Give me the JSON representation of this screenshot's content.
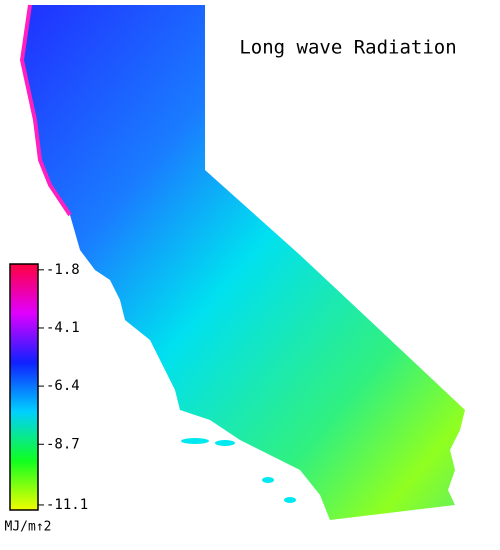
{
  "title": "Long wave Radiation",
  "colorbar": {
    "ticks": [
      -1.8,
      -4.1,
      -6.4,
      -8.7,
      -11.1
    ],
    "lim": [
      -1.57,
      -11.3
    ],
    "unit": "MJ/m↑2",
    "colors": [
      "#ff0040",
      "#e000ff",
      "#1020ff",
      "#00d0ff",
      "#10ff20",
      "#f0ff00"
    ]
  }
}
